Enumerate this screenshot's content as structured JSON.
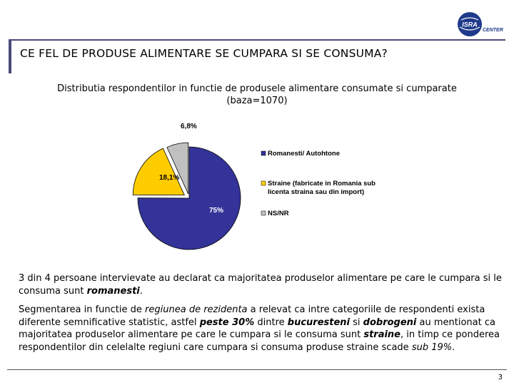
{
  "logo": {
    "brand": "ISRA",
    "sub": "CENTER",
    "color": "#1f3a8a"
  },
  "slide": {
    "title": "CE FEL DE PRODUSE ALIMENTARE SE CUMPARA SI SE CONSUMA?",
    "subtitle_line1": "Distributia respondentilor in functie de produsele alimentare consumate si cumparate",
    "subtitle_line2": "(baza=1070)",
    "page_number": "3"
  },
  "chart_data": {
    "type": "pie",
    "slices": [
      {
        "name": "Romanesti/ Autohtone",
        "value": 75,
        "label": "75%",
        "color": "#333399"
      },
      {
        "name": "Straine (fabricate in Romania sub licenta straina sau din import)",
        "value": 18.1,
        "label": "18,1%",
        "color": "#ffcc00"
      },
      {
        "name": "NS/NR",
        "value": 6.8,
        "label": "6,8%",
        "color": "#c0c0c0"
      }
    ],
    "legend": {
      "position": "right",
      "entries": [
        {
          "line1": "Romanesti/ Autohtone",
          "line2": ""
        },
        {
          "line1": "Straine (fabricate in Romania sub",
          "line2": "licenta straina sau din import)"
        },
        {
          "line1": "NS/NR",
          "line2": ""
        }
      ]
    }
  },
  "paragraph1": {
    "text1": "3 din 4 persoane intervievate au declarat ca majoritatea produselor alimentare pe care le cumpara si le consuma sunt ",
    "em1": "romanesti",
    "text2": "."
  },
  "paragraph2": {
    "t1": "Segmentarea in functie de ",
    "i1": "regiunea de rezidenta",
    "t2": " a relevat ca intre categoriile de respondenti exista diferente semnificative statistic, astfel ",
    "bi1": "peste 30%",
    "t3": " dintre ",
    "bi2": "bucuresteni",
    "t4": " si ",
    "bi3": "dobrogeni",
    "t5": " au mentionat ca majoritatea produselor alimentare pe care le cumpara si le consuma sunt ",
    "bi4": "straine",
    "t6": ", in timp ce ponderea respondentilor din celelalte regiuni care cumpara si consuma produse straine scade ",
    "i2": "sub 19%",
    "t7": "."
  }
}
